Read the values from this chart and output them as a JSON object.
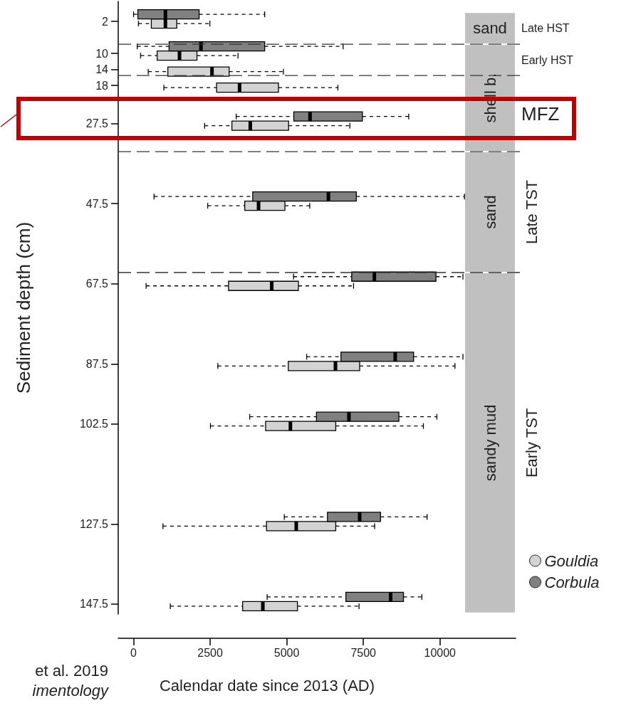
{
  "chart_data": {
    "type": "box",
    "orientation": "horizontal",
    "xlabel": "Calendar date since 2013 (AD)",
    "ylabel": "Sediment depth (cm)",
    "x": [
      2,
      10,
      14,
      18,
      27.5,
      47.5,
      67.5,
      87.5,
      102.5,
      127.5,
      147.5
    ],
    "xlim": [
      -500,
      12470
    ],
    "xticks": [
      0,
      2500,
      5000,
      7500,
      10000
    ],
    "ylim": [
      150,
      -3
    ],
    "yticks": [
      2,
      10,
      14,
      18,
      27.5,
      47.5,
      67.5,
      87.5,
      102.5,
      127.5,
      147.5
    ],
    "series": [
      {
        "name": "Gouldia",
        "color": "#d3d3d3",
        "boxes": [
          {
            "low": 160,
            "q1": 580,
            "median": 1040,
            "q3": 1410,
            "high": 2490
          },
          {
            "low": 230,
            "q1": 770,
            "median": 1500,
            "q3": 2070,
            "high": 3410
          },
          {
            "low": 480,
            "q1": 1120,
            "median": 2560,
            "q3": 3120,
            "high": 4890
          },
          {
            "low": 990,
            "q1": 2710,
            "median": 3460,
            "q3": 4730,
            "high": 6670
          },
          {
            "low": 2320,
            "q1": 3210,
            "median": 3810,
            "q3": 5060,
            "high": 7060
          },
          {
            "low": 2420,
            "q1": 3630,
            "median": 4080,
            "q3": 4940,
            "high": 5750
          },
          {
            "low": 410,
            "q1": 3100,
            "median": 4510,
            "q3": 5380,
            "high": 7180
          },
          {
            "low": 2750,
            "q1": 5050,
            "median": 6590,
            "q3": 7380,
            "high": 10490
          },
          {
            "low": 2510,
            "q1": 4310,
            "median": 5120,
            "q3": 6600,
            "high": 9460
          },
          {
            "low": 960,
            "q1": 4340,
            "median": 5310,
            "q3": 6600,
            "high": 7870
          },
          {
            "low": 1200,
            "q1": 3560,
            "median": 4220,
            "q3": 5350,
            "high": 7360
          }
        ]
      },
      {
        "name": "Corbula",
        "color": "#808080",
        "boxes": [
          {
            "low": 0,
            "q1": 140,
            "median": 1040,
            "q3": 2140,
            "high": 4280
          },
          {
            "low": 120,
            "q1": 1160,
            "median": 2200,
            "q3": 4280,
            "high": 6840
          },
          null,
          null,
          {
            "low": 3350,
            "q1": 5230,
            "median": 5760,
            "q3": 7470,
            "high": 8980
          },
          {
            "low": 670,
            "q1": 3890,
            "median": 6360,
            "q3": 7270,
            "high": 10800
          },
          {
            "low": 5220,
            "q1": 7120,
            "median": 7860,
            "q3": 9870,
            "high": 10750
          },
          {
            "low": 5650,
            "q1": 6770,
            "median": 8540,
            "q3": 9140,
            "high": 10750
          },
          {
            "low": 3790,
            "q1": 5970,
            "median": 7030,
            "q3": 8660,
            "high": 9900
          },
          {
            "low": 4920,
            "q1": 6330,
            "median": 7380,
            "q3": 8060,
            "high": 9580
          },
          {
            "low": 4360,
            "q1": 6930,
            "median": 8390,
            "q3": 8810,
            "high": 9410
          }
        ]
      }
    ],
    "ref_lines": [
      {
        "axis": "y",
        "value": 7.7,
        "line_style": "dashed"
      },
      {
        "axis": "y",
        "value": 15.5,
        "line_style": "dashed"
      },
      {
        "axis": "y",
        "value": 34.5,
        "line_style": "dashed"
      },
      {
        "axis": "y",
        "value": 64.7,
        "line_style": "dashed"
      }
    ],
    "bands": [
      {
        "axis": "y",
        "from": -0.3,
        "to": 7.7,
        "label": "sand",
        "color": "#c0c0c0"
      },
      {
        "axis": "y",
        "from": 7.7,
        "to": 34.5,
        "label": "shell b.",
        "color": "#c0c0c0"
      },
      {
        "axis": "y",
        "from": 34.5,
        "to": 64.7,
        "label": "sand",
        "color": "#c0c0c0"
      },
      {
        "axis": "y",
        "from": 64.7,
        "to": 149.8,
        "label": "sandy mud",
        "color": "#c0c0c0"
      }
    ],
    "legend": "bottom right",
    "annotations": [
      "Late HST",
      "Early HST",
      "MFZ",
      "Late TST",
      "Early TST",
      "et al. 2019",
      "imentology"
    ]
  }
}
